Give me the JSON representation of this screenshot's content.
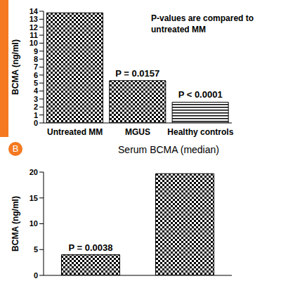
{
  "chart_data": [
    {
      "type": "bar",
      "categories": [
        "Untreated MM",
        "MGUS",
        "Healthy controls"
      ],
      "values": [
        13.8,
        5.3,
        2.6
      ],
      "color": "#000000",
      "y_label": "BCMA (ng/ml)",
      "ylim": [
        0,
        14
      ],
      "yticks": [
        0,
        1,
        2,
        3,
        4,
        5,
        6,
        7,
        8,
        9,
        10,
        11,
        12,
        13,
        14
      ],
      "annotations": [
        {
          "text": "P = 0.0157",
          "index": 1
        },
        {
          "text": "P < 0.0001",
          "index": 2
        }
      ],
      "text_box": "P-values are compared to untreated MM"
    },
    {
      "type": "bar",
      "title": "Serum BCMA (median)",
      "panel_label": "B",
      "categories": [
        null,
        null
      ],
      "values": [
        4.0,
        19.7
      ],
      "color": "#000000",
      "y_label": "BCMA (ng/ml)",
      "ylim": [
        0,
        20
      ],
      "yticks": [
        0,
        5,
        10,
        15,
        20
      ],
      "annotations": [
        {
          "text": "P = 0.0038",
          "index": 0
        }
      ]
    }
  ]
}
